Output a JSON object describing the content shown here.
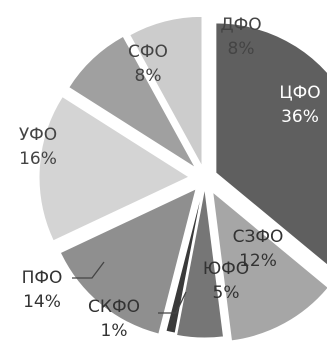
{
  "chart_data": {
    "type": "pie",
    "title": "",
    "slices": [
      {
        "name": "ЦФО",
        "percent_label": "36%",
        "value": 36,
        "color": "#5f5f5f",
        "label_color": "#ffffff"
      },
      {
        "name": "СЗФО",
        "percent_label": "12%",
        "value": 12,
        "color": "#a6a6a6",
        "label_color": "#333333"
      },
      {
        "name": "ЮФО",
        "percent_label": "5%",
        "value": 5,
        "color": "#767676",
        "label_color": "#333333"
      },
      {
        "name": "СКФО",
        "percent_label": "1%",
        "value": 1,
        "color": "#3a3a3a",
        "label_color": "#333333"
      },
      {
        "name": "ПФО",
        "percent_label": "14%",
        "value": 14,
        "color": "#8f8f8f",
        "label_color": "#333333"
      },
      {
        "name": "УФО",
        "percent_label": "16%",
        "value": 16,
        "color": "#d4d4d4",
        "label_color": "#444444"
      },
      {
        "name": "СФО",
        "percent_label": "8%",
        "value": 8,
        "color": "#a0a0a0",
        "label_color": "#444444"
      },
      {
        "name": "ДФО",
        "percent_label": "8%",
        "value": 8,
        "color": "#cccccc",
        "label_color": "#444444"
      }
    ],
    "start_angle_deg": 90,
    "direction": "clockwise",
    "legend": "none",
    "exploded": true
  }
}
